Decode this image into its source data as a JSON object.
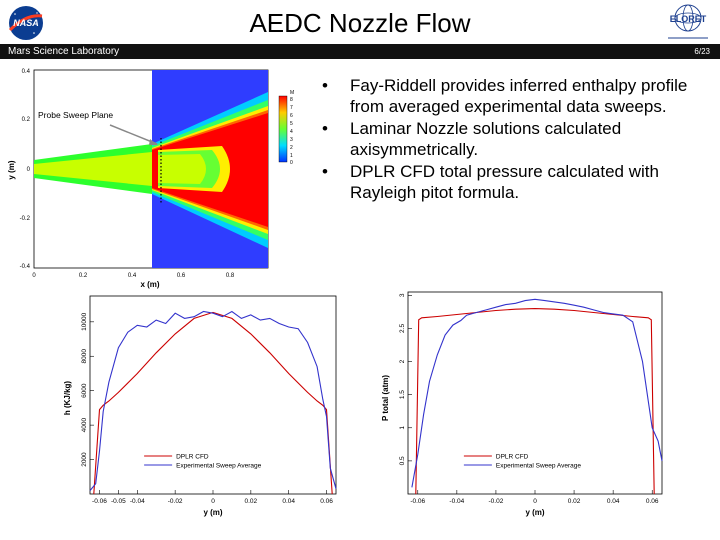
{
  "slide": {
    "title": "AEDC Nozzle Flow",
    "subtitle": "Mars Science Laboratory",
    "page": "6/23",
    "nasa_logo": "NASA",
    "eloret_logo": "ELORET"
  },
  "bullets": [
    "Fay-Riddell provides inferred enthalpy profile from averaged experimental data sweeps.",
    "Laminar Nozzle solutions calculated axisymmetrically.",
    "DPLR CFD total pressure calculated with Rayleigh pitot formula."
  ],
  "contour_plot": {
    "xlabel": "x (m)",
    "ylabel": "y (m)",
    "annotation": "Probe Sweep Plane",
    "x_ticks": [
      "0",
      "0.2",
      "0.4",
      "0.6",
      "0.8"
    ],
    "y_ticks": [
      "0.4",
      "0.2",
      "0",
      "-0.2",
      "-0.4"
    ],
    "colorbar_title": "M",
    "colorbar_labels": [
      "8",
      "7",
      "6",
      "5",
      "4",
      "3",
      "2",
      "1",
      "0"
    ]
  },
  "chart_data": [
    {
      "type": "line",
      "xlabel": "y (m)",
      "ylabel": "h (KJ/kg)",
      "x_ticks": [
        "-0.06",
        "-0.05",
        "-0.04",
        "-0.02",
        "0",
        "0.02",
        "0.04",
        "0.06"
      ],
      "y_ticks": [
        "2000",
        "4000",
        "6000",
        "8000",
        "10000"
      ],
      "xlim": [
        -0.065,
        0.065
      ],
      "ylim": [
        0,
        11500
      ],
      "series": [
        {
          "name": "DPLR CFD",
          "color": "#cc0000",
          "x": [
            -0.063,
            -0.06,
            -0.058,
            -0.055,
            -0.05,
            -0.04,
            -0.03,
            -0.02,
            -0.01,
            0,
            0.01,
            0.02,
            0.03,
            0.04,
            0.05,
            0.055,
            0.058,
            0.06,
            0.063
          ],
          "y": [
            0,
            4900,
            5150,
            5400,
            5900,
            7000,
            8200,
            9300,
            10200,
            10550,
            10200,
            9300,
            8200,
            7000,
            5900,
            5400,
            5150,
            4900,
            0
          ]
        },
        {
          "name": "Experimental Sweep Average",
          "color": "#3333cc",
          "x": [
            -0.065,
            -0.062,
            -0.06,
            -0.058,
            -0.055,
            -0.05,
            -0.045,
            -0.04,
            -0.035,
            -0.03,
            -0.025,
            -0.02,
            -0.015,
            -0.01,
            -0.005,
            0,
            0.005,
            0.01,
            0.015,
            0.02,
            0.025,
            0.03,
            0.035,
            0.04,
            0.045,
            0.05,
            0.055,
            0.058,
            0.06,
            0.062,
            0.065
          ],
          "y": [
            200,
            600,
            2500,
            4800,
            6500,
            8500,
            9400,
            9800,
            9700,
            10100,
            9900,
            10500,
            10200,
            10300,
            10600,
            10500,
            10300,
            10600,
            10200,
            10400,
            10100,
            10200,
            9900,
            9700,
            9600,
            8800,
            7400,
            5500,
            4500,
            1500,
            300
          ]
        }
      ]
    },
    {
      "type": "line",
      "xlabel": "y (m)",
      "ylabel": "P total (atm)",
      "x_ticks": [
        "-0.06",
        "-0.04",
        "-0.02",
        "0",
        "0.02",
        "0.04",
        "0.06"
      ],
      "y_ticks": [
        "0.5",
        "1",
        "1.5",
        "2",
        "2.5",
        "3"
      ],
      "xlim": [
        -0.065,
        0.065
      ],
      "ylim": [
        0,
        3.05
      ],
      "series": [
        {
          "name": "DPLR CFD",
          "color": "#cc0000",
          "x": [
            -0.061,
            -0.0595,
            -0.058,
            -0.05,
            -0.04,
            -0.03,
            -0.02,
            -0.01,
            0,
            0.01,
            0.02,
            0.03,
            0.04,
            0.05,
            0.058,
            0.0595,
            0.061
          ],
          "y": [
            0,
            2.63,
            2.66,
            2.68,
            2.71,
            2.74,
            2.77,
            2.79,
            2.8,
            2.79,
            2.77,
            2.74,
            2.71,
            2.68,
            2.66,
            2.63,
            0
          ]
        },
        {
          "name": "Experimental Sweep Average",
          "color": "#3333cc",
          "x": [
            -0.063,
            -0.06,
            -0.057,
            -0.054,
            -0.05,
            -0.046,
            -0.042,
            -0.038,
            -0.035,
            -0.03,
            -0.025,
            -0.02,
            -0.015,
            -0.01,
            -0.005,
            0,
            0.005,
            0.01,
            0.015,
            0.02,
            0.025,
            0.03,
            0.035,
            0.04,
            0.045,
            0.05,
            0.055,
            0.058,
            0.06,
            0.063,
            0.065
          ],
          "y": [
            0.1,
            0.6,
            1.2,
            1.7,
            2.1,
            2.4,
            2.55,
            2.62,
            2.7,
            2.74,
            2.78,
            2.82,
            2.86,
            2.88,
            2.92,
            2.94,
            2.92,
            2.9,
            2.88,
            2.85,
            2.82,
            2.78,
            2.74,
            2.72,
            2.7,
            2.6,
            2.0,
            1.4,
            1.0,
            0.8,
            0.5
          ]
        }
      ]
    }
  ]
}
